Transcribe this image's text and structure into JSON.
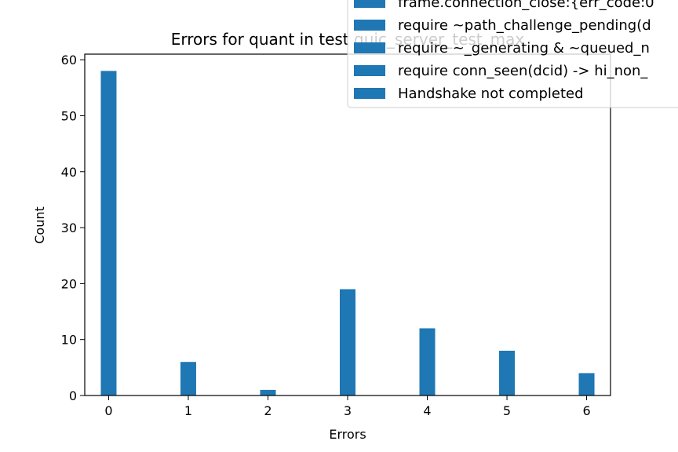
{
  "chart_data": {
    "type": "bar",
    "title": "Errors for quant in test quic_server_test_max",
    "xlabel": "Errors",
    "ylabel": "Count",
    "x": [
      0,
      1,
      2,
      3,
      4,
      5,
      6
    ],
    "values": [
      58,
      6,
      1,
      19,
      12,
      8,
      4
    ],
    "xlim": [
      -0.3,
      6.3
    ],
    "ylim": [
      0,
      61
    ],
    "xticks": [
      "0",
      "1",
      "2",
      "3",
      "4",
      "5",
      "6"
    ],
    "yticks": [
      "0",
      "10",
      "20",
      "30",
      "40",
      "50",
      "60"
    ],
    "bar_color": "#1f77b4",
    "legend": {
      "placement": "top-right",
      "entries": [
        "frame.connection_close:{err_code:0",
        "require ~path_challenge_pending(d",
        "require ~_generating & ~queued_n",
        "require conn_seen(dcid) -> hi_non_",
        "Handshake not completed"
      ]
    }
  }
}
